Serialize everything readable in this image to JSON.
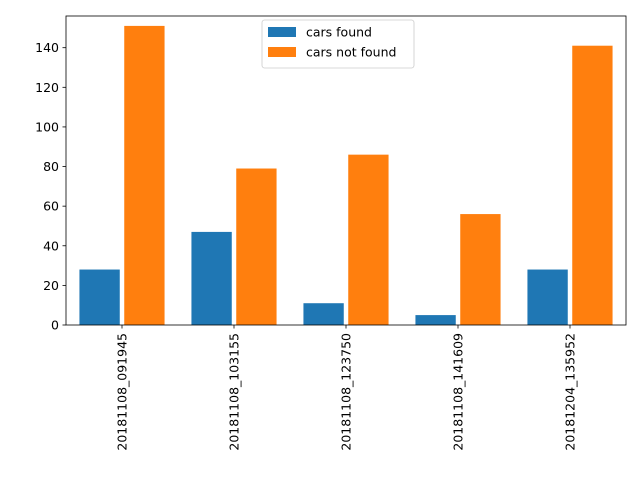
{
  "chart_data": {
    "type": "bar",
    "categories": [
      "20181108_091945",
      "20181108_103155",
      "20181108_123750",
      "20181108_141609",
      "20181204_135952"
    ],
    "series": [
      {
        "name": "cars found",
        "values": [
          28,
          47,
          11,
          5,
          28
        ],
        "color": "#1f77b4"
      },
      {
        "name": "cars not found",
        "values": [
          151,
          79,
          86,
          56,
          141
        ],
        "color": "#ff7f0e"
      }
    ],
    "ylim": [
      0,
      156
    ],
    "yticks": [
      0,
      20,
      40,
      60,
      80,
      100,
      120,
      140
    ],
    "title": "",
    "xlabel": "",
    "ylabel": "",
    "legend_position": "top-center",
    "grid": false
  }
}
